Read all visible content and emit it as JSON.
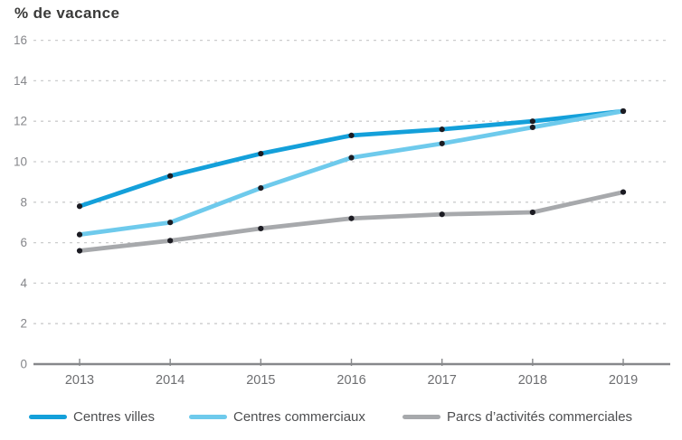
{
  "title": "% de vacance",
  "chart_data": {
    "type": "line",
    "title": "% de vacance",
    "x": [
      "2013",
      "2014",
      "2015",
      "2016",
      "2017",
      "2018",
      "2019"
    ],
    "series": [
      {
        "name": "Centres villes",
        "color": "#149fda",
        "values": [
          7.8,
          9.3,
          10.4,
          11.3,
          11.6,
          12.0,
          12.5
        ]
      },
      {
        "name": "Centres commerciaux",
        "color": "#6ecaec",
        "values": [
          6.4,
          7.0,
          8.7,
          10.2,
          10.9,
          11.7,
          12.5
        ]
      },
      {
        "name": "Parcs d’activités commerciales",
        "color": "#a7a9ac",
        "values": [
          5.6,
          6.1,
          6.7,
          7.2,
          7.4,
          7.5,
          8.5
        ]
      }
    ],
    "ylim": [
      0,
      16
    ],
    "yticks": [
      0,
      2,
      4,
      6,
      8,
      10,
      12,
      14,
      16
    ],
    "grid": "horizontal-dashed",
    "legend_position": "bottom",
    "marker_color": "#1b1b22",
    "colors": {
      "grid_line": "#cbcccd",
      "axis_line": "#87888b",
      "y_tick_label": "#85868a",
      "x_tick_label": "#6d6e71",
      "series_dark_blue": "#14a0da",
      "series_light_blue": "#6ecaec",
      "series_gray": "#a7a9ac"
    }
  }
}
